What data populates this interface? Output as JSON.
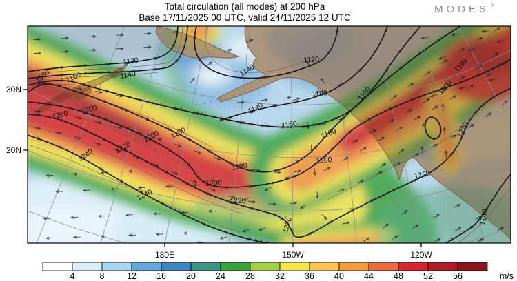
{
  "header": {
    "title_line1": "Total circulation (all modes) at 200 hPa",
    "title_line2": "Base 17/11/2025 00 UTC, valid 24/11/2025 12 UTC"
  },
  "logo": {
    "text": "MODES",
    "mark": "®"
  },
  "axes": {
    "lat_labels": [
      "30N",
      "20N"
    ],
    "lon_labels": [
      "180E",
      "150W",
      "120W"
    ]
  },
  "colorbar": {
    "unit": "m/s",
    "ticks": [
      "4",
      "8",
      "12",
      "16",
      "20",
      "24",
      "28",
      "32",
      "36",
      "40",
      "44",
      "48",
      "52",
      "56"
    ],
    "colors": [
      "#ffffff",
      "#d9edf7",
      "#a8d8ef",
      "#63a8db",
      "#3e86c0",
      "#3f9488",
      "#3aa33c",
      "#a3cf44",
      "#f2e64f",
      "#fdc44f",
      "#f69a3c",
      "#ee6a41",
      "#d8262c",
      "#b01c26",
      "#8c121c"
    ]
  },
  "contour_labels": [
    "1120",
    "1120",
    "1140",
    "1140",
    "1140",
    "1140",
    "1160",
    "1160",
    "1160",
    "1180",
    "1180",
    "1180",
    "1180",
    "1200",
    "1200",
    "1200",
    "1200",
    "1220",
    "1220",
    "1220",
    "1220",
    "1220",
    "1220",
    "1240",
    "1240",
    "1240",
    "1200",
    "1180"
  ],
  "chart_data": {
    "type": "heatmap",
    "title": "Total circulation (all modes) at 200 hPa",
    "subtitle": "Base 17/11/2025 00 UTC, valid 24/11/2025 12 UTC",
    "units": "m/s",
    "colorbar_ticks": [
      4,
      8,
      12,
      16,
      20,
      24,
      28,
      32,
      36,
      40,
      44,
      48,
      52,
      56
    ],
    "colorbar_colors": [
      "#ffffff",
      "#d9edf7",
      "#a8d8ef",
      "#63a8db",
      "#3e86c0",
      "#3f9488",
      "#3aa33c",
      "#a3cf44",
      "#f2e64f",
      "#fdc44f",
      "#f69a3c",
      "#ee6a41",
      "#d8262c",
      "#b01c26",
      "#8c121c"
    ],
    "contour_levels": [
      1120,
      1140,
      1160,
      1180,
      1200,
      1220,
      1240
    ],
    "lat_labels": [
      "30N",
      "20N"
    ],
    "lon_labels": [
      "180E",
      "150W",
      "120W"
    ],
    "legend_position": "bottom",
    "overlays": [
      "black streamfunction contours",
      "wind vector arrows",
      "coastlines",
      "lat-lon graticule"
    ]
  }
}
